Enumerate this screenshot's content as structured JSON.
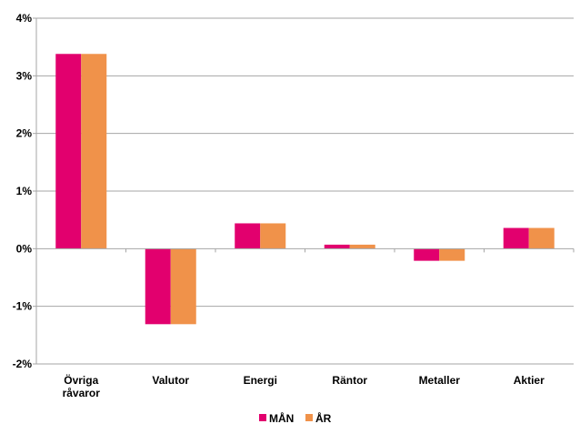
{
  "chart_data": {
    "type": "bar",
    "title": "",
    "xlabel": "",
    "ylabel": "",
    "categories": [
      [
        "Övriga",
        "råvaror"
      ],
      [
        "Valutor"
      ],
      [
        "Energi"
      ],
      [
        "Räntor"
      ],
      [
        "Metaller"
      ],
      [
        "Aktier"
      ]
    ],
    "series": [
      {
        "name": "MÅN",
        "color": "#e2006e",
        "values": [
          3.38,
          -1.31,
          0.44,
          0.07,
          -0.21,
          0.36
        ]
      },
      {
        "name": "ÅR",
        "color": "#f0924a",
        "values": [
          3.38,
          -1.31,
          0.44,
          0.07,
          -0.21,
          0.36
        ]
      }
    ],
    "ylim": [
      -2,
      4
    ],
    "yticks": [
      -2,
      -1,
      0,
      1,
      2,
      3,
      4
    ],
    "ytick_labels": [
      "-2%",
      "-1%",
      "0%",
      "1%",
      "2%",
      "3%",
      "4%"
    ],
    "grid": true,
    "legend_position": "bottom-center",
    "colors": {
      "gridline": "#a6a6a6",
      "axis": "#a6a6a6"
    }
  }
}
